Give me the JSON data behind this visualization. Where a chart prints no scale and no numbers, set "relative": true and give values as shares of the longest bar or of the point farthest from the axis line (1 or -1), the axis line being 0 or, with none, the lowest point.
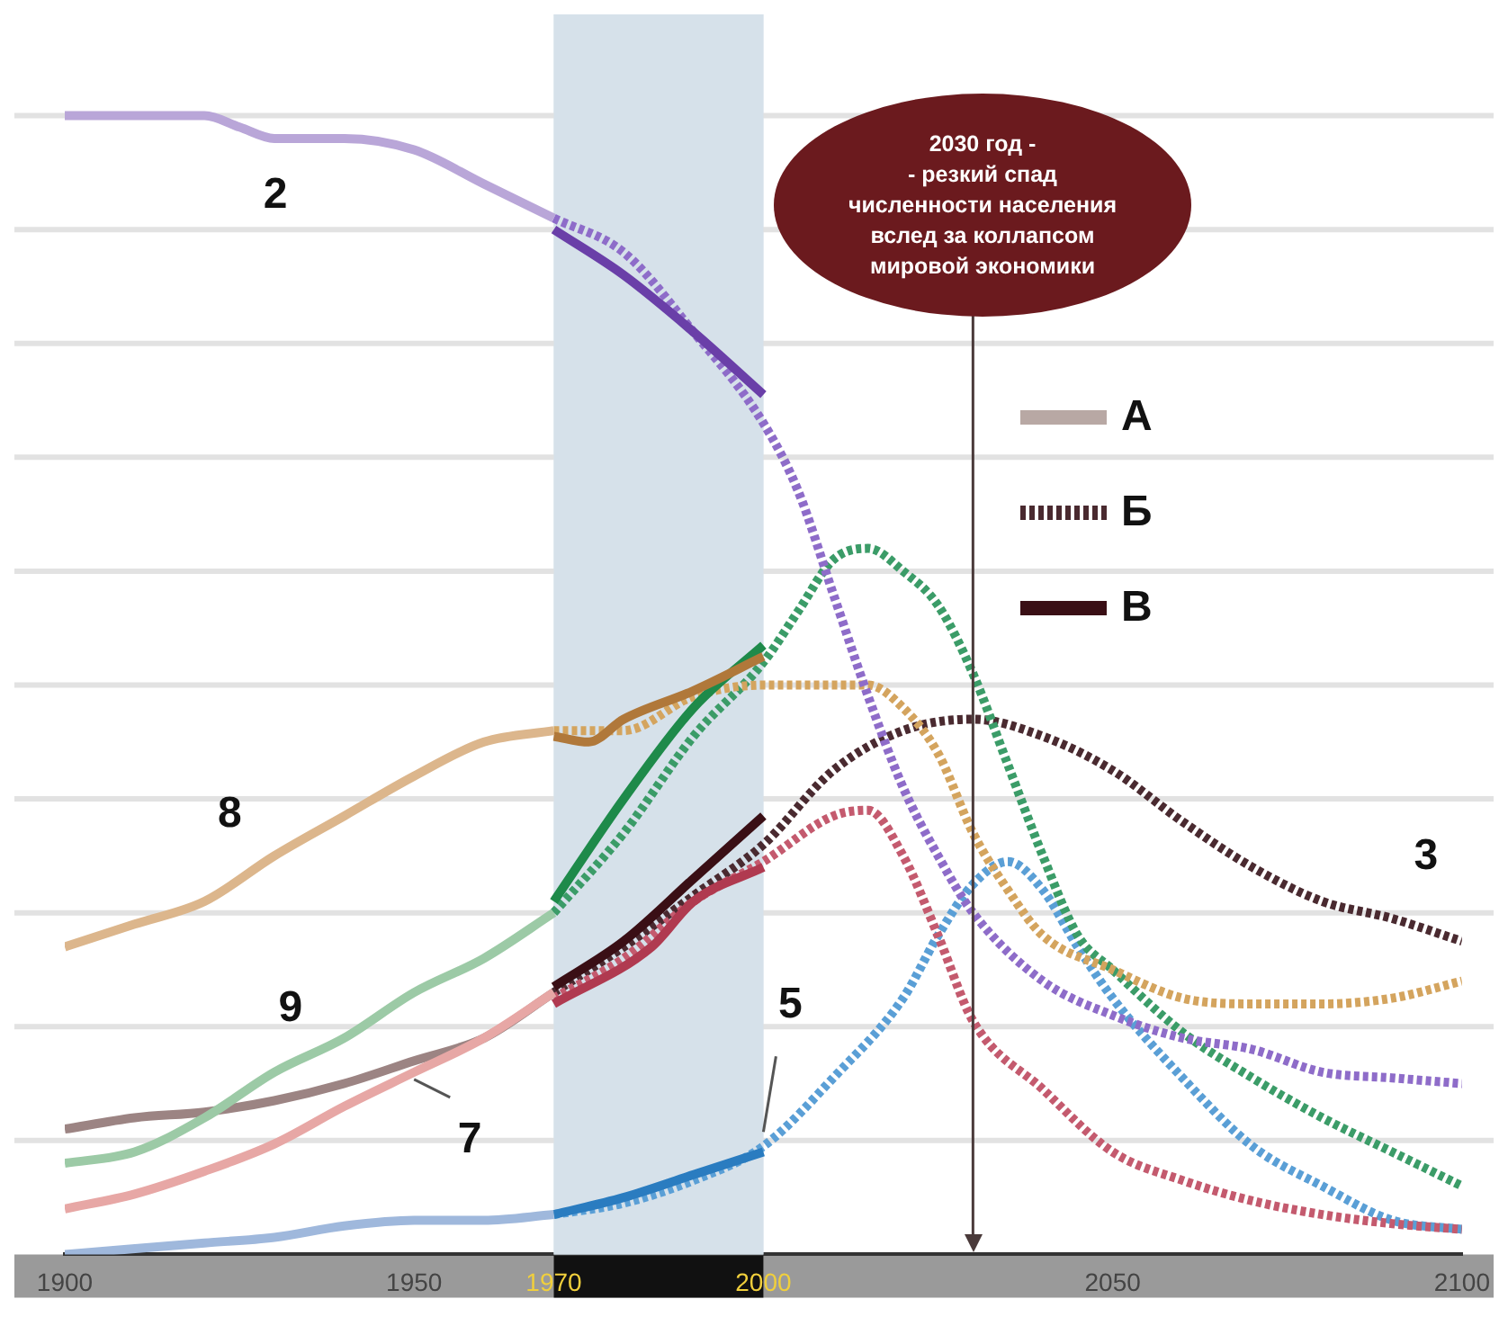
{
  "chart_data": {
    "type": "line",
    "relative": true,
    "grid": "y",
    "xlim": [
      1900,
      2100
    ],
    "xticks": [
      1900,
      1950,
      1970,
      2000,
      2050,
      2100
    ],
    "bands": [
      {
        "axis": "x",
        "from": 1970,
        "to": 2000,
        "color": "#d6e1ea"
      }
    ],
    "ref_lines": [
      {
        "axis": "x",
        "value": 2030,
        "color": "#4a3a3a"
      }
    ],
    "annotations": [
      "2030 год -\n- резкий спад\nчисленности населения\nвслед за коллапсом\nмировой экономики",
      "А",
      "Б",
      "В"
    ],
    "series": [
      {
        "name": "2",
        "color": "#b9a6d8",
        "line_style": "solid",
        "x": [
          1900,
          1910,
          1920,
          1925,
          1930,
          1940,
          1950,
          1960,
          1970
        ],
        "values": [
          1.0,
          1.0,
          1.0,
          0.99,
          0.98,
          0.98,
          0.97,
          0.94,
          0.91
        ]
      },
      {
        "color": "#6a3fa8",
        "line_style": "solid",
        "x": [
          1970,
          1980,
          1990,
          2000
        ],
        "values": [
          0.9,
          0.86,
          0.81,
          0.755
        ]
      },
      {
        "color": "#8e6cc9",
        "line_style": "dashed",
        "x": [
          1970,
          1980,
          1990,
          2000,
          2005,
          2010,
          2015,
          2020,
          2025,
          2030,
          2040,
          2050,
          2060,
          2070,
          2080,
          2090,
          2100
        ],
        "values": [
          0.91,
          0.88,
          0.81,
          0.73,
          0.67,
          0.58,
          0.49,
          0.41,
          0.35,
          0.3,
          0.24,
          0.21,
          0.19,
          0.18,
          0.16,
          0.155,
          0.15
        ]
      },
      {
        "name": "8",
        "color": "#dcb68c",
        "line_style": "solid",
        "x": [
          1900,
          1910,
          1920,
          1930,
          1940,
          1950,
          1960,
          1970
        ],
        "values": [
          0.27,
          0.29,
          0.31,
          0.35,
          0.385,
          0.42,
          0.45,
          0.46
        ]
      },
      {
        "color": "#b0783a",
        "line_style": "solid",
        "x": [
          1970,
          1975,
          1980,
          1990,
          2000
        ],
        "values": [
          0.455,
          0.45,
          0.47,
          0.495,
          0.525
        ]
      },
      {
        "color": "#d4a45e",
        "line_style": "dashed",
        "x": [
          1970,
          1980,
          1990,
          2000,
          2010,
          2015,
          2020,
          2025,
          2030,
          2035,
          2040,
          2050,
          2060,
          2070,
          2080,
          2090,
          2100
        ],
        "values": [
          0.46,
          0.46,
          0.49,
          0.5,
          0.5,
          0.5,
          0.48,
          0.44,
          0.37,
          0.32,
          0.28,
          0.25,
          0.225,
          0.22,
          0.22,
          0.225,
          0.24
        ]
      },
      {
        "name": "9",
        "color": "#9ccaa6",
        "line_style": "solid",
        "x": [
          1900,
          1910,
          1920,
          1930,
          1940,
          1950,
          1960,
          1970
        ],
        "values": [
          0.08,
          0.09,
          0.12,
          0.16,
          0.19,
          0.23,
          0.26,
          0.3
        ]
      },
      {
        "color": "#1e8a4a",
        "line_style": "solid",
        "x": [
          1970,
          1980,
          1990,
          2000
        ],
        "values": [
          0.31,
          0.4,
          0.48,
          0.535
        ]
      },
      {
        "color": "#3b9c68",
        "line_style": "dashed",
        "x": [
          1970,
          1980,
          1990,
          2000,
          2005,
          2010,
          2015,
          2020,
          2025,
          2030,
          2035,
          2040,
          2045,
          2050,
          2060,
          2070,
          2080,
          2090,
          2100
        ],
        "values": [
          0.3,
          0.37,
          0.455,
          0.52,
          0.565,
          0.61,
          0.62,
          0.6,
          0.57,
          0.51,
          0.43,
          0.35,
          0.28,
          0.25,
          0.195,
          0.155,
          0.12,
          0.09,
          0.06
        ]
      },
      {
        "name": "7",
        "color": "#e7a7a5",
        "line_style": "solid",
        "x": [
          1900,
          1910,
          1920,
          1930,
          1940,
          1950,
          1960,
          1970
        ],
        "values": [
          0.04,
          0.053,
          0.073,
          0.097,
          0.13,
          0.16,
          0.19,
          0.23
        ]
      },
      {
        "color": "#b03a50",
        "line_style": "solid",
        "x": [
          1970,
          1984,
          1990,
          2000
        ],
        "values": [
          0.22,
          0.27,
          0.31,
          0.34
        ]
      },
      {
        "color": "#c45a6e",
        "line_style": "dashed",
        "x": [
          1970,
          1980,
          1990,
          2000,
          2010,
          2015,
          2020,
          2025,
          2030,
          2040,
          2050,
          2060,
          2070,
          2080,
          2090,
          2100
        ],
        "values": [
          0.225,
          0.26,
          0.31,
          0.345,
          0.385,
          0.39,
          0.35,
          0.28,
          0.205,
          0.145,
          0.09,
          0.065,
          0.047,
          0.035,
          0.027,
          0.022
        ]
      },
      {
        "color": "#9c8483",
        "line_style": "solid",
        "x": [
          1900,
          1910,
          1920,
          1930,
          1940,
          1950,
          1960,
          1970
        ],
        "values": [
          0.11,
          0.12,
          0.125,
          0.135,
          0.15,
          0.17,
          0.19,
          0.23
        ]
      },
      {
        "color": "#3a0f15",
        "line_style": "solid",
        "x": [
          1970,
          1980,
          1990,
          2000
        ],
        "values": [
          0.235,
          0.275,
          0.33,
          0.385
        ]
      },
      {
        "name": "3",
        "color": "#4a2a30",
        "line_style": "dashed",
        "x": [
          1970,
          1980,
          1990,
          2000,
          2010,
          2020,
          2030,
          2040,
          2050,
          2060,
          2070,
          2080,
          2090,
          2100
        ],
        "values": [
          0.23,
          0.27,
          0.315,
          0.36,
          0.425,
          0.46,
          0.47,
          0.455,
          0.425,
          0.38,
          0.34,
          0.31,
          0.295,
          0.275
        ]
      },
      {
        "color": "#9fb8dc",
        "line_style": "solid",
        "x": [
          1900,
          1920,
          1930,
          1940,
          1950,
          1960,
          1970
        ],
        "values": [
          0.0,
          0.01,
          0.015,
          0.025,
          0.03,
          0.03,
          0.035
        ]
      },
      {
        "color": "#2a7cc0",
        "line_style": "solid",
        "x": [
          1970,
          1980,
          1990,
          2000
        ],
        "values": [
          0.035,
          0.05,
          0.07,
          0.09
        ]
      },
      {
        "name": "5",
        "color": "#5a9fd6",
        "line_style": "dashed",
        "x": [
          1970,
          1980,
          1990,
          2000,
          2010,
          2020,
          2025,
          2030,
          2035,
          2040,
          2045,
          2050,
          2060,
          2070,
          2080,
          2090,
          2100
        ],
        "values": [
          0.035,
          0.045,
          0.065,
          0.095,
          0.155,
          0.225,
          0.28,
          0.325,
          0.345,
          0.32,
          0.27,
          0.225,
          0.155,
          0.095,
          0.06,
          0.03,
          0.022
        ]
      }
    ]
  }
}
